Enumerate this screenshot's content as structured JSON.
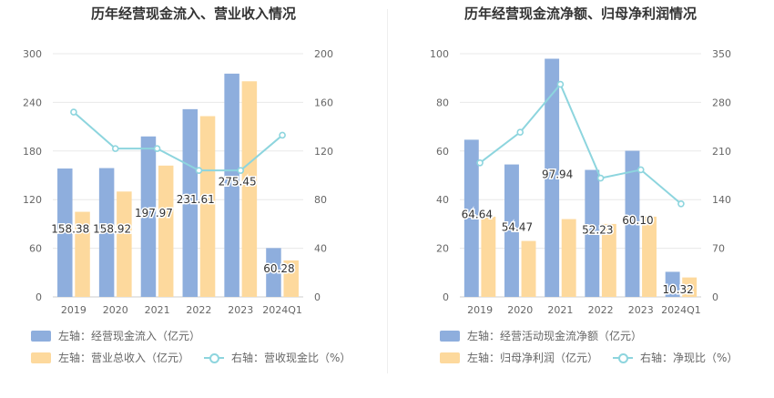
{
  "colors": {
    "bar_primary": "#8eaedd",
    "bar_secondary": "#fdd99d",
    "line": "#8dd5de",
    "grid": "#e8e8e8",
    "axis_text": "#666666"
  },
  "chart_data": [
    {
      "type": "bar",
      "title": "历年经营现金流入、营业收入情况",
      "categories": [
        "2019",
        "2020",
        "2021",
        "2022",
        "2023",
        "2024Q1"
      ],
      "left_axis": {
        "ylim": [
          0,
          300
        ],
        "ticks": [
          0,
          60,
          120,
          180,
          240,
          300
        ]
      },
      "right_axis": {
        "ylim": [
          0,
          200
        ],
        "ticks": [
          0,
          40,
          80,
          120,
          160,
          200
        ]
      },
      "series": [
        {
          "name": "左轴：经营现金流入（亿元）",
          "kind": "bar",
          "axis": "left",
          "values": [
            158.38,
            158.92,
            197.97,
            231.61,
            275.45,
            60.28
          ],
          "labels": [
            "158.38",
            "158.92",
            "197.97",
            "231.61",
            "275.45",
            "60.28"
          ]
        },
        {
          "name": "左轴：营业总收入（亿元）",
          "kind": "bar",
          "axis": "left",
          "values": [
            105,
            130,
            162,
            223,
            266,
            45
          ]
        },
        {
          "name": "右轴：营收现金比（%）",
          "kind": "line",
          "axis": "right",
          "values": [
            152,
            122,
            122,
            104,
            104,
            133
          ]
        }
      ]
    },
    {
      "type": "bar",
      "title": "历年经营现金流净额、归母净利润情况",
      "categories": [
        "2019",
        "2020",
        "2021",
        "2022",
        "2023",
        "2024Q1"
      ],
      "left_axis": {
        "ylim": [
          0,
          100
        ],
        "ticks": [
          0,
          20,
          40,
          60,
          80,
          100
        ]
      },
      "right_axis": {
        "ylim": [
          0,
          350
        ],
        "ticks": [
          0,
          70,
          140,
          210,
          280,
          350
        ]
      },
      "series": [
        {
          "name": "左轴：经营活动现金流净额（亿元）",
          "kind": "bar",
          "axis": "left",
          "values": [
            64.64,
            54.47,
            97.94,
            52.23,
            60.1,
            10.32
          ],
          "labels": [
            "64.64",
            "54.47",
            "97.94",
            "52.23",
            "60.10",
            "10.32"
          ]
        },
        {
          "name": "左轴：归母净利润（亿元）",
          "kind": "bar",
          "axis": "left",
          "values": [
            33,
            23,
            32,
            30,
            33,
            8
          ]
        },
        {
          "name": "右轴：净现比（%）",
          "kind": "line",
          "axis": "right",
          "values": [
            193,
            237,
            306,
            171,
            183,
            134
          ]
        }
      ]
    }
  ]
}
